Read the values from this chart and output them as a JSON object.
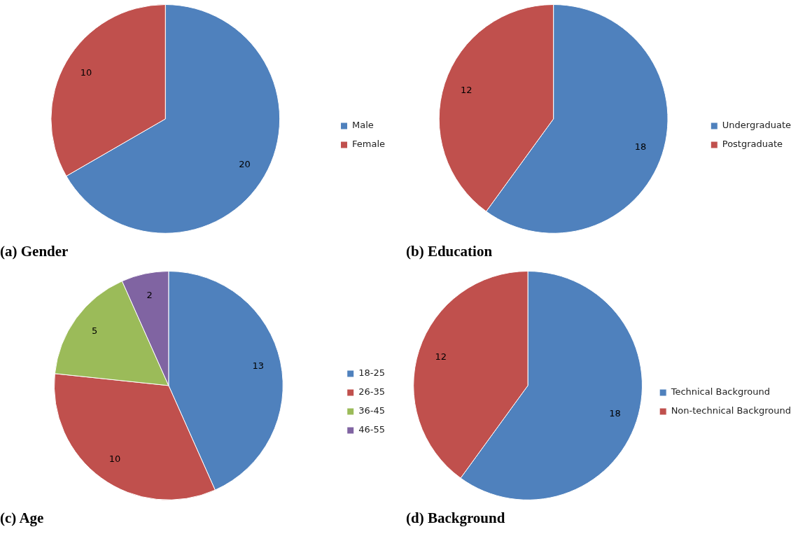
{
  "chart_data": [
    {
      "type": "pie",
      "title": "(a) Gender",
      "categories": [
        "Male",
        "Female"
      ],
      "values": [
        20,
        10
      ],
      "colors": [
        "#4f81bd",
        "#c0504d"
      ],
      "legend": "right",
      "data_labels": true
    },
    {
      "type": "pie",
      "title": "(b) Education",
      "categories": [
        "Undergraduate",
        "Postgraduate"
      ],
      "values": [
        18,
        12
      ],
      "colors": [
        "#4f81bd",
        "#c0504d"
      ],
      "legend": "right",
      "data_labels": true
    },
    {
      "type": "pie",
      "title": "(c) Age",
      "categories": [
        "18-25",
        "26-35",
        "36-45",
        "46-55"
      ],
      "values": [
        13,
        10,
        5,
        2
      ],
      "colors": [
        "#4f81bd",
        "#c0504d",
        "#9bbb59",
        "#8064a2"
      ],
      "legend": "right",
      "data_labels": true
    },
    {
      "type": "pie",
      "title": "(d) Background",
      "categories": [
        "Technical Background",
        "Non-technical Background"
      ],
      "values": [
        18,
        12
      ],
      "colors": [
        "#4f81bd",
        "#c0504d"
      ],
      "legend": "right",
      "data_labels": true
    }
  ]
}
